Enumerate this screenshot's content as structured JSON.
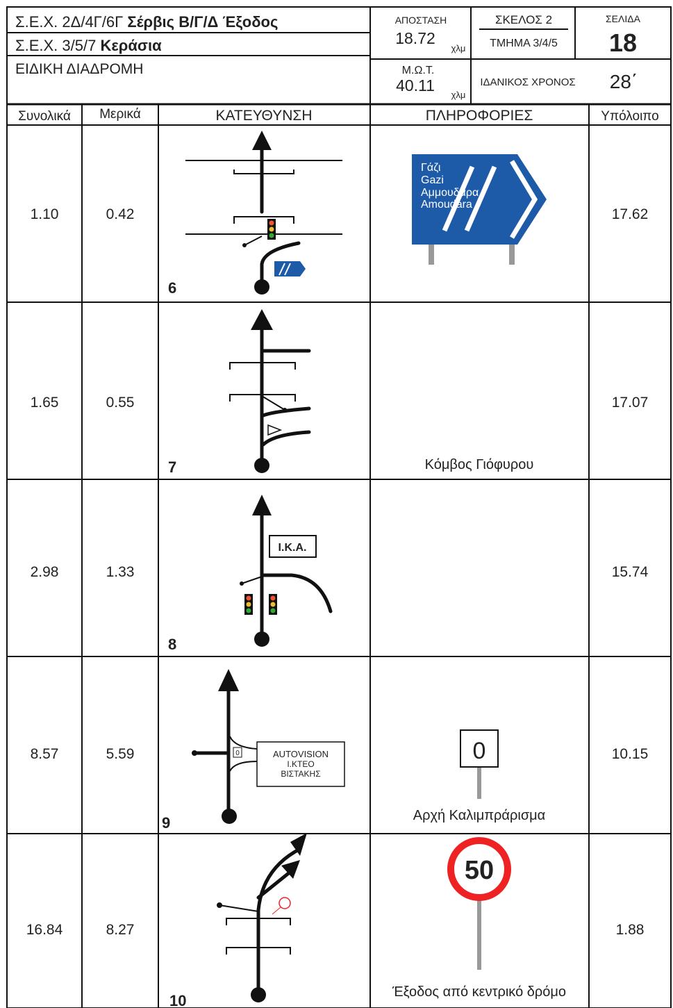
{
  "header": {
    "line1_prefix": "Σ.Ε.Χ. 2Δ/4Γ/6Γ",
    "line1_bold": "Σέρβις Β/Γ/Δ Έξοδος",
    "line2_prefix": "Σ.Ε.Χ. 3/5/7",
    "line2_bold": "Κεράσια",
    "line3": "ΕΙΔΙΚΗ ΔΙΑΔΡΟΜΗ",
    "distance_label": "ΑΠΟΣΤΑΣΗ",
    "distance": "18.72",
    "distance_unit": "χλμ",
    "leg": "ΣΚΕΛΟΣ 2",
    "section": "ΤΜΗΜΑ 3/4/5",
    "page_label": "ΣΕΛΙΔΑ",
    "page": "18",
    "avg_label": "Μ.Ω.Τ.",
    "avg": "40.11",
    "avg_unit": "χλμ",
    "ideal_label": "ΙΔΑΝΙΚΟΣ ΧΡΟΝΟΣ",
    "ideal": "28΄"
  },
  "columns": [
    "Συνολικά",
    "Μερικά",
    "ΚΑΤΕΥΘΥΝΣΗ",
    "ΠΛΗΡΟΦΟΡΙΕΣ",
    "Υπόλοιπο"
  ],
  "rows": [
    {
      "total": "1.10",
      "partial": "0.42",
      "number": "6",
      "remaining": "17.62",
      "sign_lines": [
        "Γάζι",
        "Gazi",
        "Αμμουδάρα",
        "Amoudara"
      ]
    },
    {
      "total": "1.65",
      "partial": "0.55",
      "number": "7",
      "remaining": "17.07",
      "info": "Κόμβος Γιόφυρου"
    },
    {
      "total": "2.98",
      "partial": "1.33",
      "number": "8",
      "remaining": "15.74",
      "tulip_label": "I.K.A."
    },
    {
      "total": "8.57",
      "partial": "5.59",
      "number": "9",
      "remaining": "10.15",
      "tulip_lines": [
        "AUTOVISION",
        "I.KTEO",
        "ΒΙΣΤΑΚΗΣ"
      ],
      "small_sign": "0",
      "sign": "0",
      "info": "Αρχή Καλιμπράρισμα"
    },
    {
      "total": "16.84",
      "partial": "8.27",
      "number": "10",
      "remaining": "1.88",
      "sign": "50",
      "info": "Έξοδος από κεντρικό δρόμο"
    }
  ]
}
